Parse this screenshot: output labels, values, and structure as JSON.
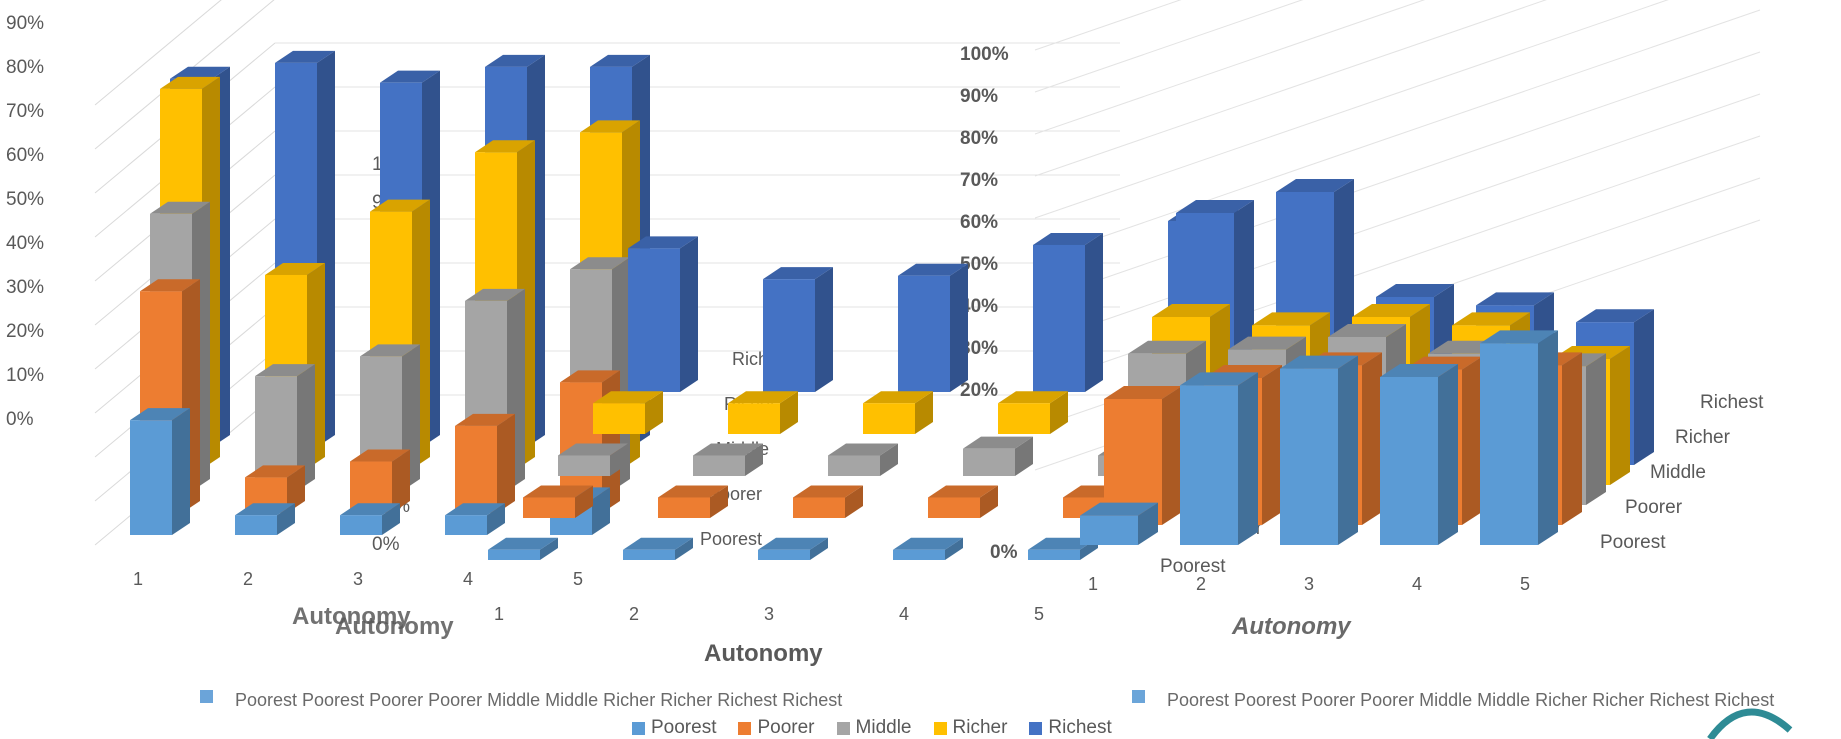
{
  "colors": {
    "Poorest": "#5b9bd5",
    "Poorer": "#ed7d31",
    "Middle": "#a5a5a5",
    "Richer": "#ffc000",
    "Richest": "#4472c4"
  },
  "chart_data": [
    {
      "type": "bar",
      "subtype": "3d-clustered-column",
      "xlabel": "Autonomy",
      "categories": [
        "1",
        "2",
        "3",
        "4",
        "5"
      ],
      "y_ticks": [
        "0%",
        "10%",
        "20%",
        "30%",
        "40%",
        "50%",
        "60%",
        "70%",
        "80%",
        "90%",
        "100%"
      ],
      "ylim": [
        0,
        1
      ],
      "grid": true,
      "legend": "bottom",
      "series": [
        {
          "name": "Poorest",
          "values": [
            0.29,
            0.05,
            0.05,
            0.05,
            0.09
          ]
        },
        {
          "name": "Poorer",
          "values": [
            0.56,
            0.09,
            0.13,
            0.22,
            0.33
          ]
        },
        {
          "name": "Middle",
          "values": [
            0.7,
            0.29,
            0.34,
            0.48,
            0.56
          ]
        },
        {
          "name": "Richer",
          "values": [
            0.96,
            0.49,
            0.65,
            0.8,
            0.85
          ]
        },
        {
          "name": "Richest",
          "values": [
            0.93,
            0.97,
            0.92,
            0.96,
            0.96
          ]
        }
      ]
    },
    {
      "type": "bar",
      "subtype": "3d-column",
      "xlabel": "Autonomy",
      "categories": [
        "1",
        "2",
        "3",
        "4",
        "5"
      ],
      "depth_labels": [
        "Poorest",
        "Poorer",
        "Middle",
        "Richer",
        "Richest"
      ],
      "y_ticks": [
        "0%",
        "10%",
        "20%",
        "30%",
        "40%",
        "50%",
        "60%",
        "70%",
        "80%",
        "90%",
        "100%"
      ],
      "ylim": [
        0,
        1
      ],
      "grid": true,
      "legend": "bottom",
      "series": [
        {
          "name": "Poorest",
          "values": [
            0.03,
            0.03,
            0.03,
            0.03,
            0.03
          ]
        },
        {
          "name": "Poorer",
          "values": [
            0.06,
            0.06,
            0.06,
            0.06,
            0.06
          ]
        },
        {
          "name": "Middle",
          "values": [
            0.06,
            0.06,
            0.06,
            0.08,
            0.06
          ]
        },
        {
          "name": "Richer",
          "values": [
            0.09,
            0.09,
            0.09,
            0.09,
            0.09
          ]
        },
        {
          "name": "Richest",
          "values": [
            0.42,
            0.33,
            0.34,
            0.43,
            0.5
          ]
        }
      ]
    },
    {
      "type": "bar",
      "subtype": "3d-column",
      "xlabel": "Autonomy",
      "categories": [
        "1",
        "2",
        "3",
        "4",
        "5"
      ],
      "depth_labels": [
        "Poorest",
        "Poorer",
        "Middle",
        "Richer",
        "Richest"
      ],
      "y_ticks": [
        "0%",
        "10%",
        "20%",
        "30%",
        "40%",
        "50%",
        "60%",
        "70%",
        "80%",
        "90%",
        "100%"
      ],
      "ylim": [
        0,
        1
      ],
      "grid": true,
      "legend": "bottom",
      "series": [
        {
          "name": "Poorest",
          "values": [
            0.07,
            0.38,
            0.42,
            0.4,
            0.48
          ]
        },
        {
          "name": "Poorer",
          "values": [
            0.3,
            0.35,
            0.38,
            0.37,
            0.38
          ]
        },
        {
          "name": "Middle",
          "values": [
            0.36,
            0.37,
            0.4,
            0.36,
            0.33
          ]
        },
        {
          "name": "Richer",
          "values": [
            0.4,
            0.38,
            0.4,
            0.38,
            0.3
          ]
        },
        {
          "name": "Richest",
          "values": [
            0.6,
            0.65,
            0.4,
            0.38,
            0.34
          ]
        }
      ]
    }
  ],
  "legend_main": [
    "Poorest",
    "Poorer",
    "Middle",
    "Richer",
    "Richest"
  ],
  "ghost_legend_left": "Poorest Poorest Poorer Poorer Middle Middle Richer Richer Richest Richest",
  "ghost_legend_right": "Poorest Poorest Poorer Poorer Middle Middle Richer Richer Richest Richest",
  "axis_title": "Autonomy"
}
